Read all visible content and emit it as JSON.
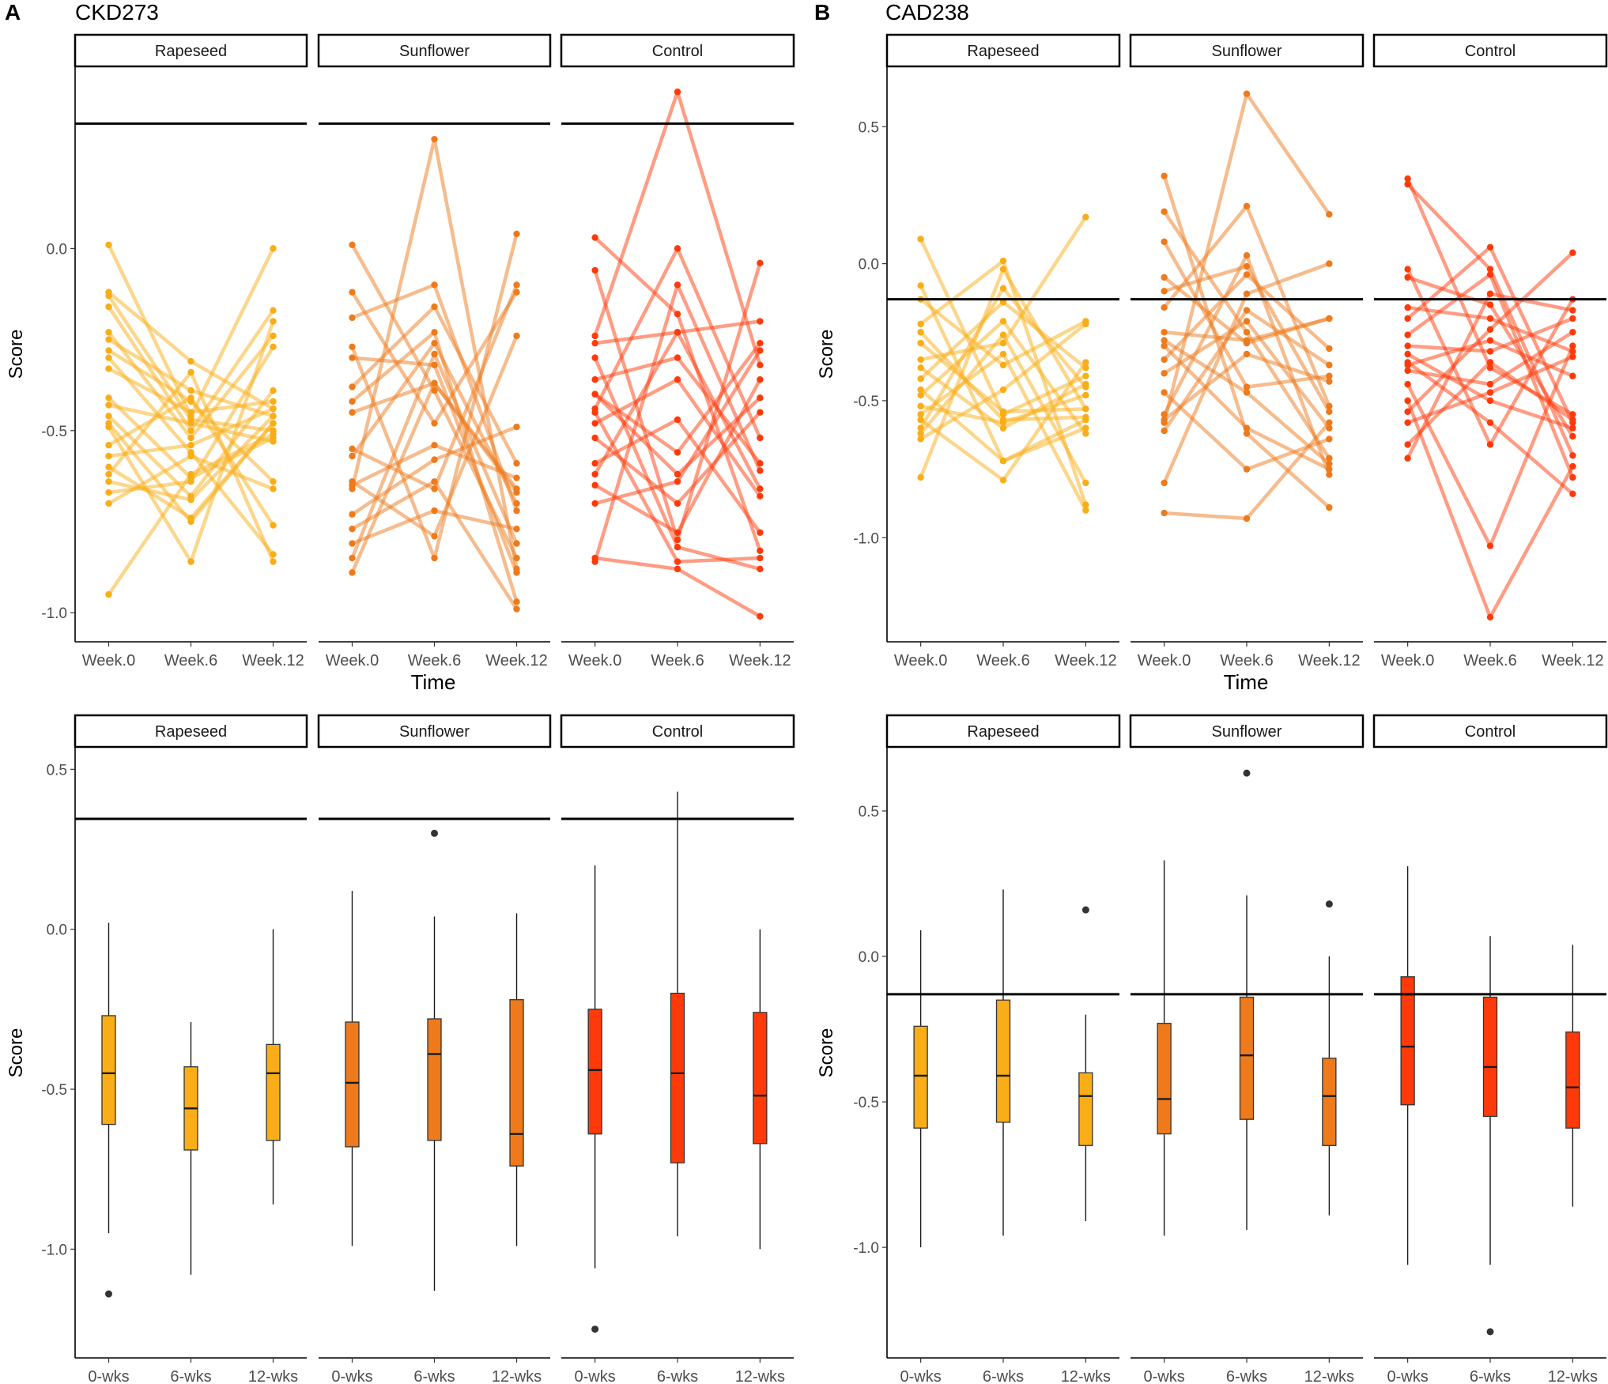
{
  "figure": {
    "panels": [
      {
        "letter": "A",
        "title": "CKD273"
      },
      {
        "letter": "B",
        "title": "CAD238"
      }
    ],
    "facets": [
      "Rapeseed",
      "Sunflower",
      "Control"
    ],
    "facet_colors": [
      "#F9AD16",
      "#EE7A1B",
      "#FF3A0A"
    ],
    "line_time_labels": [
      "Week.0",
      "Week.6",
      "Week.12"
    ],
    "box_time_labels": [
      "0-wks",
      "6-wks",
      "12-wks"
    ],
    "xlabel_line": "Time",
    "ylabel": "Score"
  },
  "chart_data": [
    {
      "id": "A-line",
      "type": "line",
      "panel": "A",
      "ylim": [
        -1.08,
        0.5
      ],
      "yticks": [
        0.0,
        -0.5,
        -1.0
      ],
      "threshold": 0.343,
      "xlabel": "Time",
      "ylabel": "Score",
      "facets": [
        {
          "name": "Rapeseed",
          "subjects": [
            [
              0.01,
              -0.46,
              -0.0
            ],
            [
              -0.12,
              -0.31,
              -0.44
            ],
            [
              -0.13,
              -0.47,
              -0.5
            ],
            [
              -0.16,
              -0.5,
              -0.17
            ],
            [
              -0.23,
              -0.52,
              -0.24
            ],
            [
              -0.25,
              -0.39,
              -0.46
            ],
            [
              -0.28,
              -0.42,
              -0.64
            ],
            [
              -0.3,
              -0.56,
              -0.84
            ],
            [
              -0.33,
              -0.45,
              -0.42
            ],
            [
              -0.41,
              -0.63,
              -0.52
            ],
            [
              -0.43,
              -0.48,
              -0.53
            ],
            [
              -0.46,
              -0.68,
              -0.39
            ],
            [
              -0.48,
              -0.75,
              -0.48
            ],
            [
              -0.49,
              -0.86,
              -0.2
            ],
            [
              -0.54,
              -0.41,
              -0.76
            ],
            [
              -0.57,
              -0.54,
              -0.44
            ],
            [
              -0.6,
              -0.74,
              -0.48
            ],
            [
              -0.62,
              -0.34,
              -0.86
            ],
            [
              -0.64,
              -0.69,
              -0.46
            ],
            [
              -0.67,
              -0.64,
              -0.27
            ],
            [
              -0.7,
              -0.57,
              -0.66
            ],
            [
              -0.95,
              -0.62,
              -0.51
            ]
          ]
        },
        {
          "name": "Sunflower",
          "subjects": [
            [
              0.01,
              -0.39,
              -0.85
            ],
            [
              -0.12,
              -0.48,
              -0.12
            ],
            [
              -0.19,
              -0.1,
              -0.72
            ],
            [
              -0.27,
              -0.85,
              0.04
            ],
            [
              -0.3,
              -0.32,
              -0.89
            ],
            [
              -0.38,
              -0.16,
              -0.59
            ],
            [
              -0.42,
              -0.23,
              -0.97
            ],
            [
              -0.45,
              -0.37,
              -0.66
            ],
            [
              -0.55,
              -0.66,
              -0.1
            ],
            [
              -0.57,
              -0.26,
              -0.7
            ],
            [
              -0.64,
              -0.79,
              -0.24
            ],
            [
              -0.65,
              -0.54,
              -0.63
            ],
            [
              -0.66,
              0.3,
              -0.88
            ],
            [
              -0.73,
              -0.58,
              -0.49
            ],
            [
              -0.77,
              -0.64,
              -0.99
            ],
            [
              -0.81,
              -0.72,
              -0.77
            ],
            [
              -0.85,
              -0.29,
              -0.81
            ],
            [
              -0.89,
              -0.37,
              -0.67
            ]
          ]
        },
        {
          "name": "Control",
          "subjects": [
            [
              0.03,
              -0.18,
              -0.83
            ],
            [
              -0.06,
              -0.8,
              -0.04
            ],
            [
              -0.24,
              0.43,
              -0.32
            ],
            [
              -0.26,
              -0.23,
              -0.2
            ],
            [
              -0.3,
              -0.82,
              -0.88
            ],
            [
              -0.36,
              -0.3,
              -0.59
            ],
            [
              -0.4,
              -0.56,
              -0.26
            ],
            [
              -0.44,
              0.0,
              -0.52
            ],
            [
              -0.48,
              -0.36,
              -0.68
            ],
            [
              -0.52,
              -0.7,
              -0.45
            ],
            [
              -0.59,
              -0.47,
              -0.78
            ],
            [
              -0.62,
              -0.23,
              -0.66
            ],
            [
              -0.65,
              -0.78,
              -0.36
            ],
            [
              -0.7,
              -0.64,
              -0.28
            ],
            [
              -0.85,
              -0.88,
              -1.01
            ],
            [
              -0.86,
              -0.1,
              -0.61
            ],
            [
              -0.4,
              -0.62,
              -0.41
            ],
            [
              -0.45,
              -0.86,
              -0.85
            ]
          ]
        }
      ]
    },
    {
      "id": "B-line",
      "type": "line",
      "panel": "B",
      "ylim": [
        -1.38,
        0.72
      ],
      "yticks": [
        0.5,
        0.0,
        -0.5,
        -1.0
      ],
      "threshold": -0.13,
      "ylabel": "Score",
      "facets": [
        {
          "name": "Rapeseed",
          "subjects": [
            [
              0.09,
              -0.55,
              -0.41
            ],
            [
              -0.08,
              -0.72,
              -0.6
            ],
            [
              -0.13,
              -0.37,
              -0.21
            ],
            [
              -0.22,
              0.01,
              -0.88
            ],
            [
              -0.25,
              -0.57,
              -0.56
            ],
            [
              -0.29,
              -0.54,
              -0.53
            ],
            [
              -0.35,
              -0.29,
              0.17
            ],
            [
              -0.38,
              -0.6,
              -0.44
            ],
            [
              -0.42,
              -0.14,
              -0.38
            ],
            [
              -0.46,
              -0.72,
              -0.57
            ],
            [
              -0.48,
              -0.21,
              -0.62
            ],
            [
              -0.52,
              -0.58,
              -0.48
            ],
            [
              -0.55,
              -0.33,
              -0.9
            ],
            [
              -0.57,
              -0.79,
              -0.36
            ],
            [
              -0.6,
              -0.09,
              -0.45
            ],
            [
              -0.62,
              -0.26,
              -0.8
            ],
            [
              -0.64,
              -0.46,
              -0.22
            ],
            [
              -0.78,
              -0.02,
              -0.53
            ]
          ]
        },
        {
          "name": "Sunflower",
          "subjects": [
            [
              0.32,
              -0.62,
              -0.89
            ],
            [
              0.19,
              -0.25,
              -0.71
            ],
            [
              0.08,
              -0.45,
              -0.41
            ],
            [
              -0.1,
              -0.01,
              -0.54
            ],
            [
              -0.16,
              0.21,
              -0.52
            ],
            [
              -0.25,
              -0.28,
              -0.2
            ],
            [
              -0.28,
              -0.47,
              -0.73
            ],
            [
              -0.3,
              -0.6,
              -0.75
            ],
            [
              -0.35,
              -0.04,
              -0.31
            ],
            [
              -0.4,
              -0.21,
              -0.6
            ],
            [
              -0.47,
              -0.75,
              -0.64
            ],
            [
              -0.55,
              0.03,
              -0.77
            ],
            [
              -0.57,
              -0.33,
              -0.43
            ],
            [
              -0.61,
              -0.17,
              -0.37
            ],
            [
              -0.8,
              -0.11,
              -0.0
            ],
            [
              -0.91,
              -0.93,
              -0.58
            ],
            [
              -0.58,
              0.62,
              0.18
            ],
            [
              -0.05,
              -0.29,
              -0.2
            ]
          ]
        },
        {
          "name": "Control",
          "subjects": [
            [
              0.31,
              -0.38,
              -0.55
            ],
            [
              0.29,
              -0.02,
              -0.7
            ],
            [
              -0.02,
              -0.66,
              -0.13
            ],
            [
              -0.05,
              -0.15,
              -0.63
            ],
            [
              -0.16,
              -0.2,
              -0.32
            ],
            [
              -0.2,
              0.06,
              -0.58
            ],
            [
              -0.26,
              -0.04,
              -0.78
            ],
            [
              -0.3,
              -0.32,
              -0.2
            ],
            [
              -0.36,
              -0.58,
              -0.84
            ],
            [
              -0.39,
              -0.44,
              -0.25
            ],
            [
              -0.44,
              -1.03,
              -0.3
            ],
            [
              -0.5,
              -1.29,
              -0.74
            ],
            [
              -0.54,
              -0.24,
              0.04
            ],
            [
              -0.58,
              -0.47,
              -0.34
            ],
            [
              -0.66,
              -0.36,
              -0.57
            ],
            [
              -0.71,
              -0.11,
              -0.17
            ],
            [
              -0.37,
              -0.28,
              -0.41
            ],
            [
              -0.33,
              -0.5,
              -0.6
            ]
          ]
        }
      ]
    },
    {
      "id": "A-box",
      "type": "box",
      "panel": "A",
      "ylim": [
        -1.34,
        0.57
      ],
      "yticks": [
        0.5,
        0.0,
        -0.5,
        -1.0
      ],
      "threshold": 0.345,
      "ylabel": "Score",
      "facets": [
        {
          "name": "Rapeseed",
          "boxes": [
            {
              "low": -0.95,
              "q1": -0.61,
              "median": -0.45,
              "q3": -0.27,
              "high": 0.02,
              "outliers": [
                -1.14
              ]
            },
            {
              "low": -1.08,
              "q1": -0.69,
              "median": -0.56,
              "q3": -0.43,
              "high": -0.29,
              "outliers": []
            },
            {
              "low": -0.86,
              "q1": -0.66,
              "median": -0.45,
              "q3": -0.36,
              "high": 0.0,
              "outliers": []
            }
          ]
        },
        {
          "name": "Sunflower",
          "boxes": [
            {
              "low": -0.99,
              "q1": -0.68,
              "median": -0.48,
              "q3": -0.29,
              "high": 0.12,
              "outliers": []
            },
            {
              "low": -1.13,
              "q1": -0.66,
              "median": -0.39,
              "q3": -0.28,
              "high": 0.04,
              "outliers": [
                0.3
              ]
            },
            {
              "low": -0.99,
              "q1": -0.74,
              "median": -0.64,
              "q3": -0.22,
              "high": 0.05,
              "outliers": []
            }
          ]
        },
        {
          "name": "Control",
          "boxes": [
            {
              "low": -1.06,
              "q1": -0.64,
              "median": -0.44,
              "q3": -0.25,
              "high": 0.2,
              "outliers": [
                -1.25
              ]
            },
            {
              "low": -0.96,
              "q1": -0.73,
              "median": -0.45,
              "q3": -0.2,
              "high": 0.43,
              "outliers": []
            },
            {
              "low": -1.0,
              "q1": -0.67,
              "median": -0.52,
              "q3": -0.26,
              "high": -0.0,
              "outliers": []
            }
          ]
        }
      ]
    },
    {
      "id": "B-box",
      "type": "box",
      "panel": "B",
      "ylim": [
        -1.38,
        0.72
      ],
      "yticks": [
        0.5,
        0.0,
        -0.5,
        -1.0
      ],
      "threshold": -0.13,
      "ylabel": "Score",
      "facets": [
        {
          "name": "Rapeseed",
          "boxes": [
            {
              "low": -1.0,
              "q1": -0.59,
              "median": -0.41,
              "q3": -0.24,
              "high": 0.09,
              "outliers": []
            },
            {
              "low": -0.96,
              "q1": -0.57,
              "median": -0.41,
              "q3": -0.15,
              "high": 0.23,
              "outliers": []
            },
            {
              "low": -0.91,
              "q1": -0.65,
              "median": -0.48,
              "q3": -0.4,
              "high": -0.2,
              "outliers": [
                0.16
              ]
            }
          ]
        },
        {
          "name": "Sunflower",
          "boxes": [
            {
              "low": -0.96,
              "q1": -0.61,
              "median": -0.49,
              "q3": -0.23,
              "high": 0.33,
              "outliers": []
            },
            {
              "low": -0.94,
              "q1": -0.56,
              "median": -0.34,
              "q3": -0.14,
              "high": 0.21,
              "outliers": [
                0.63
              ]
            },
            {
              "low": -0.89,
              "q1": -0.65,
              "median": -0.48,
              "q3": -0.35,
              "high": 0.0,
              "outliers": [
                0.18
              ]
            }
          ]
        },
        {
          "name": "Control",
          "boxes": [
            {
              "low": -1.06,
              "q1": -0.51,
              "median": -0.31,
              "q3": -0.07,
              "high": 0.31,
              "outliers": []
            },
            {
              "low": -1.06,
              "q1": -0.55,
              "median": -0.38,
              "q3": -0.14,
              "high": 0.07,
              "outliers": [
                -1.29
              ]
            },
            {
              "low": -0.86,
              "q1": -0.59,
              "median": -0.45,
              "q3": -0.26,
              "high": 0.04,
              "outliers": []
            }
          ]
        }
      ]
    }
  ]
}
